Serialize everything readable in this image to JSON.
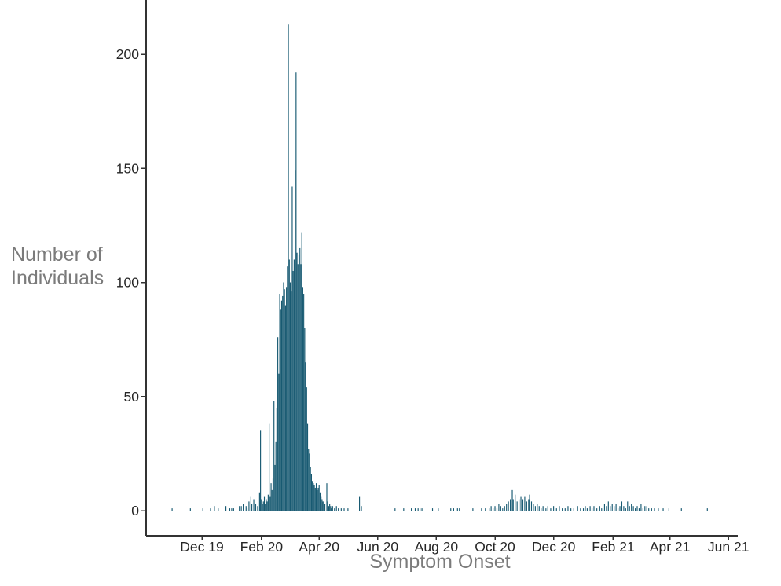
{
  "chart_data": {
    "type": "bar",
    "title": "",
    "xlabel": "Symptom Onset",
    "ylabel": "Number of Individuals",
    "ylabel_lines": [
      "Number of",
      "Individuals"
    ],
    "grid": false,
    "legend": "none",
    "y_axis": {
      "ticks": [
        0,
        50,
        100,
        150,
        200
      ],
      "range": [
        0,
        224
      ]
    },
    "x_axis": {
      "ticks": [
        {
          "label": "Dec 19",
          "date": "2019-12-01"
        },
        {
          "label": "Feb 20",
          "date": "2020-02-01"
        },
        {
          "label": "Apr 20",
          "date": "2020-04-01"
        },
        {
          "label": "Jun 20",
          "date": "2020-06-01"
        },
        {
          "label": "Aug 20",
          "date": "2020-08-01"
        },
        {
          "label": "Oct 20",
          "date": "2020-10-01"
        },
        {
          "label": "Dec 20",
          "date": "2020-12-01"
        },
        {
          "label": "Feb 21",
          "date": "2021-02-01"
        },
        {
          "label": "Apr 21",
          "date": "2021-04-01"
        },
        {
          "label": "Jun 21",
          "date": "2021-06-01"
        }
      ],
      "range": [
        "2019-10-15",
        "2021-06-15"
      ]
    },
    "colors": {
      "bar": "#185a72",
      "axis": "#333333",
      "tick_label": "#262626",
      "axis_title": "#7b7b7b",
      "background": "#ffffff"
    },
    "series_name": "Daily number of individuals by symptom onset date",
    "series": [
      [
        "2019-10-31",
        1
      ],
      [
        "2019-11-19",
        1
      ],
      [
        "2019-12-02",
        1
      ],
      [
        "2019-12-10",
        1
      ],
      [
        "2019-12-14",
        2
      ],
      [
        "2019-12-18",
        1
      ],
      [
        "2019-12-26",
        2
      ],
      [
        "2019-12-30",
        1
      ],
      [
        "2020-01-01",
        1
      ],
      [
        "2020-01-03",
        1
      ],
      [
        "2020-01-09",
        2
      ],
      [
        "2020-01-11",
        2
      ],
      [
        "2020-01-13",
        3
      ],
      [
        "2020-01-16",
        2
      ],
      [
        "2020-01-17",
        1
      ],
      [
        "2020-01-19",
        4
      ],
      [
        "2020-01-21",
        6
      ],
      [
        "2020-01-22",
        3
      ],
      [
        "2020-01-24",
        5
      ],
      [
        "2020-01-26",
        3
      ],
      [
        "2020-01-28",
        2
      ],
      [
        "2020-01-30",
        8
      ],
      [
        "2020-01-31",
        35
      ],
      [
        "2020-02-01",
        5
      ],
      [
        "2020-02-02",
        3
      ],
      [
        "2020-02-03",
        4
      ],
      [
        "2020-02-04",
        6
      ],
      [
        "2020-02-05",
        3
      ],
      [
        "2020-02-06",
        5
      ],
      [
        "2020-02-07",
        4
      ],
      [
        "2020-02-08",
        7
      ],
      [
        "2020-02-09",
        38
      ],
      [
        "2020-02-10",
        6
      ],
      [
        "2020-02-11",
        12
      ],
      [
        "2020-02-12",
        9
      ],
      [
        "2020-02-13",
        14
      ],
      [
        "2020-02-14",
        48
      ],
      [
        "2020-02-15",
        20
      ],
      [
        "2020-02-16",
        30
      ],
      [
        "2020-02-17",
        45
      ],
      [
        "2020-02-18",
        76
      ],
      [
        "2020-02-19",
        60
      ],
      [
        "2020-02-20",
        95
      ],
      [
        "2020-02-21",
        88
      ],
      [
        "2020-02-22",
        92
      ],
      [
        "2020-02-23",
        94
      ],
      [
        "2020-02-24",
        100
      ],
      [
        "2020-02-25",
        97
      ],
      [
        "2020-02-26",
        90
      ],
      [
        "2020-02-27",
        98
      ],
      [
        "2020-02-28",
        107
      ],
      [
        "2020-02-29",
        213
      ],
      [
        "2020-03-01",
        110
      ],
      [
        "2020-03-02",
        100
      ],
      [
        "2020-03-03",
        96
      ],
      [
        "2020-03-04",
        142
      ],
      [
        "2020-03-05",
        105
      ],
      [
        "2020-03-06",
        110
      ],
      [
        "2020-03-07",
        149
      ],
      [
        "2020-03-08",
        192
      ],
      [
        "2020-03-09",
        113
      ],
      [
        "2020-03-10",
        108
      ],
      [
        "2020-03-11",
        112
      ],
      [
        "2020-03-12",
        115
      ],
      [
        "2020-03-13",
        108
      ],
      [
        "2020-03-14",
        122
      ],
      [
        "2020-03-15",
        98
      ],
      [
        "2020-03-16",
        95
      ],
      [
        "2020-03-17",
        80
      ],
      [
        "2020-03-18",
        65
      ],
      [
        "2020-03-19",
        54
      ],
      [
        "2020-03-20",
        38
      ],
      [
        "2020-03-21",
        27
      ],
      [
        "2020-03-22",
        25
      ],
      [
        "2020-03-23",
        19
      ],
      [
        "2020-03-24",
        16
      ],
      [
        "2020-03-25",
        13
      ],
      [
        "2020-03-26",
        12
      ],
      [
        "2020-03-27",
        11
      ],
      [
        "2020-03-28",
        10
      ],
      [
        "2020-03-29",
        12
      ],
      [
        "2020-03-30",
        9
      ],
      [
        "2020-03-31",
        10
      ],
      [
        "2020-04-01",
        11
      ],
      [
        "2020-04-02",
        8
      ],
      [
        "2020-04-03",
        6
      ],
      [
        "2020-04-04",
        5
      ],
      [
        "2020-04-05",
        4
      ],
      [
        "2020-04-06",
        4
      ],
      [
        "2020-04-07",
        3
      ],
      [
        "2020-04-09",
        12
      ],
      [
        "2020-04-10",
        4
      ],
      [
        "2020-04-11",
        2
      ],
      [
        "2020-04-12",
        3
      ],
      [
        "2020-04-13",
        2
      ],
      [
        "2020-04-14",
        1
      ],
      [
        "2020-04-15",
        2
      ],
      [
        "2020-04-17",
        1
      ],
      [
        "2020-04-19",
        2
      ],
      [
        "2020-04-21",
        1
      ],
      [
        "2020-04-24",
        1
      ],
      [
        "2020-04-27",
        1
      ],
      [
        "2020-05-01",
        1
      ],
      [
        "2020-05-13",
        6
      ],
      [
        "2020-05-15",
        2
      ],
      [
        "2020-06-19",
        1
      ],
      [
        "2020-06-28",
        1
      ],
      [
        "2020-07-06",
        1
      ],
      [
        "2020-07-10",
        1
      ],
      [
        "2020-07-13",
        1
      ],
      [
        "2020-07-15",
        1
      ],
      [
        "2020-07-17",
        1
      ],
      [
        "2020-07-28",
        1
      ],
      [
        "2020-08-03",
        1
      ],
      [
        "2020-08-16",
        1
      ],
      [
        "2020-08-19",
        1
      ],
      [
        "2020-08-23",
        1
      ],
      [
        "2020-08-25",
        1
      ],
      [
        "2020-09-08",
        1
      ],
      [
        "2020-09-17",
        1
      ],
      [
        "2020-09-21",
        1
      ],
      [
        "2020-09-25",
        1
      ],
      [
        "2020-09-27",
        2
      ],
      [
        "2020-09-29",
        1
      ],
      [
        "2020-10-01",
        2
      ],
      [
        "2020-10-03",
        1
      ],
      [
        "2020-10-05",
        3
      ],
      [
        "2020-10-07",
        2
      ],
      [
        "2020-10-09",
        1
      ],
      [
        "2020-10-11",
        2
      ],
      [
        "2020-10-13",
        3
      ],
      [
        "2020-10-15",
        4
      ],
      [
        "2020-10-17",
        5
      ],
      [
        "2020-10-19",
        9
      ],
      [
        "2020-10-20",
        5
      ],
      [
        "2020-10-22",
        7
      ],
      [
        "2020-10-24",
        4
      ],
      [
        "2020-10-26",
        5
      ],
      [
        "2020-10-28",
        6
      ],
      [
        "2020-10-30",
        5
      ],
      [
        "2020-11-01",
        6
      ],
      [
        "2020-11-03",
        4
      ],
      [
        "2020-11-05",
        5
      ],
      [
        "2020-11-06",
        7
      ],
      [
        "2020-11-08",
        4
      ],
      [
        "2020-11-10",
        3
      ],
      [
        "2020-11-12",
        2
      ],
      [
        "2020-11-14",
        3
      ],
      [
        "2020-11-16",
        2
      ],
      [
        "2020-11-18",
        1
      ],
      [
        "2020-11-20",
        2
      ],
      [
        "2020-11-23",
        1
      ],
      [
        "2020-11-25",
        2
      ],
      [
        "2020-11-28",
        1
      ],
      [
        "2020-12-01",
        2
      ],
      [
        "2020-12-04",
        1
      ],
      [
        "2020-12-07",
        2
      ],
      [
        "2020-12-10",
        1
      ],
      [
        "2020-12-13",
        1
      ],
      [
        "2020-12-16",
        2
      ],
      [
        "2020-12-19",
        1
      ],
      [
        "2020-12-22",
        1
      ],
      [
        "2020-12-26",
        2
      ],
      [
        "2020-12-29",
        1
      ],
      [
        "2021-01-01",
        1
      ],
      [
        "2021-01-03",
        2
      ],
      [
        "2021-01-05",
        1
      ],
      [
        "2021-01-08",
        2
      ],
      [
        "2021-01-10",
        1
      ],
      [
        "2021-01-12",
        2
      ],
      [
        "2021-01-15",
        1
      ],
      [
        "2021-01-18",
        2
      ],
      [
        "2021-01-20",
        1
      ],
      [
        "2021-01-23",
        3
      ],
      [
        "2021-01-25",
        2
      ],
      [
        "2021-01-27",
        4
      ],
      [
        "2021-01-29",
        2
      ],
      [
        "2021-01-31",
        3
      ],
      [
        "2021-02-02",
        2
      ],
      [
        "2021-02-04",
        3
      ],
      [
        "2021-02-06",
        1
      ],
      [
        "2021-02-08",
        2
      ],
      [
        "2021-02-10",
        4
      ],
      [
        "2021-02-12",
        2
      ],
      [
        "2021-02-14",
        1
      ],
      [
        "2021-02-16",
        4
      ],
      [
        "2021-02-18",
        2
      ],
      [
        "2021-02-20",
        3
      ],
      [
        "2021-02-22",
        2
      ],
      [
        "2021-02-24",
        1
      ],
      [
        "2021-02-26",
        2
      ],
      [
        "2021-02-28",
        1
      ],
      [
        "2021-03-02",
        3
      ],
      [
        "2021-03-04",
        1
      ],
      [
        "2021-03-06",
        2
      ],
      [
        "2021-03-08",
        2
      ],
      [
        "2021-03-10",
        1
      ],
      [
        "2021-03-13",
        1
      ],
      [
        "2021-03-16",
        1
      ],
      [
        "2021-03-20",
        1
      ],
      [
        "2021-03-25",
        1
      ],
      [
        "2021-03-31",
        1
      ],
      [
        "2021-04-13",
        1
      ],
      [
        "2021-05-10",
        1
      ]
    ]
  }
}
